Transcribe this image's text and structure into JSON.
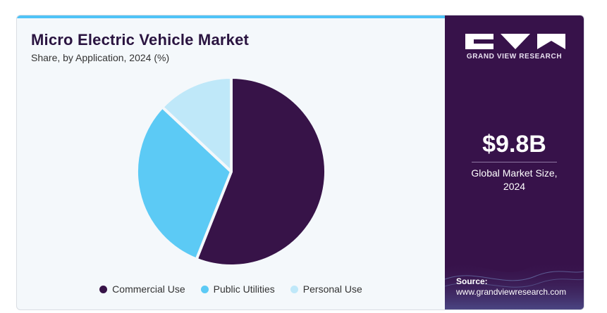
{
  "header": {
    "title": "Micro Electric Vehicle Market",
    "subtitle": "Share, by Application, 2024 (%)"
  },
  "chart_data": {
    "type": "pie",
    "categories": [
      "Commercial Use",
      "Public Utilities",
      "Personal Use"
    ],
    "values": [
      56,
      31,
      13
    ],
    "colors": [
      "#371348",
      "#5ccaf5",
      "#bfe8f9"
    ],
    "legend_position": "bottom"
  },
  "sidebar": {
    "brand": "GRAND VIEW RESEARCH",
    "market_size": "$9.8B",
    "market_caption_line1": "Global Market Size,",
    "market_caption_line2": "2024",
    "source_label": "Source:",
    "source_url": "www.grandviewresearch.com"
  }
}
